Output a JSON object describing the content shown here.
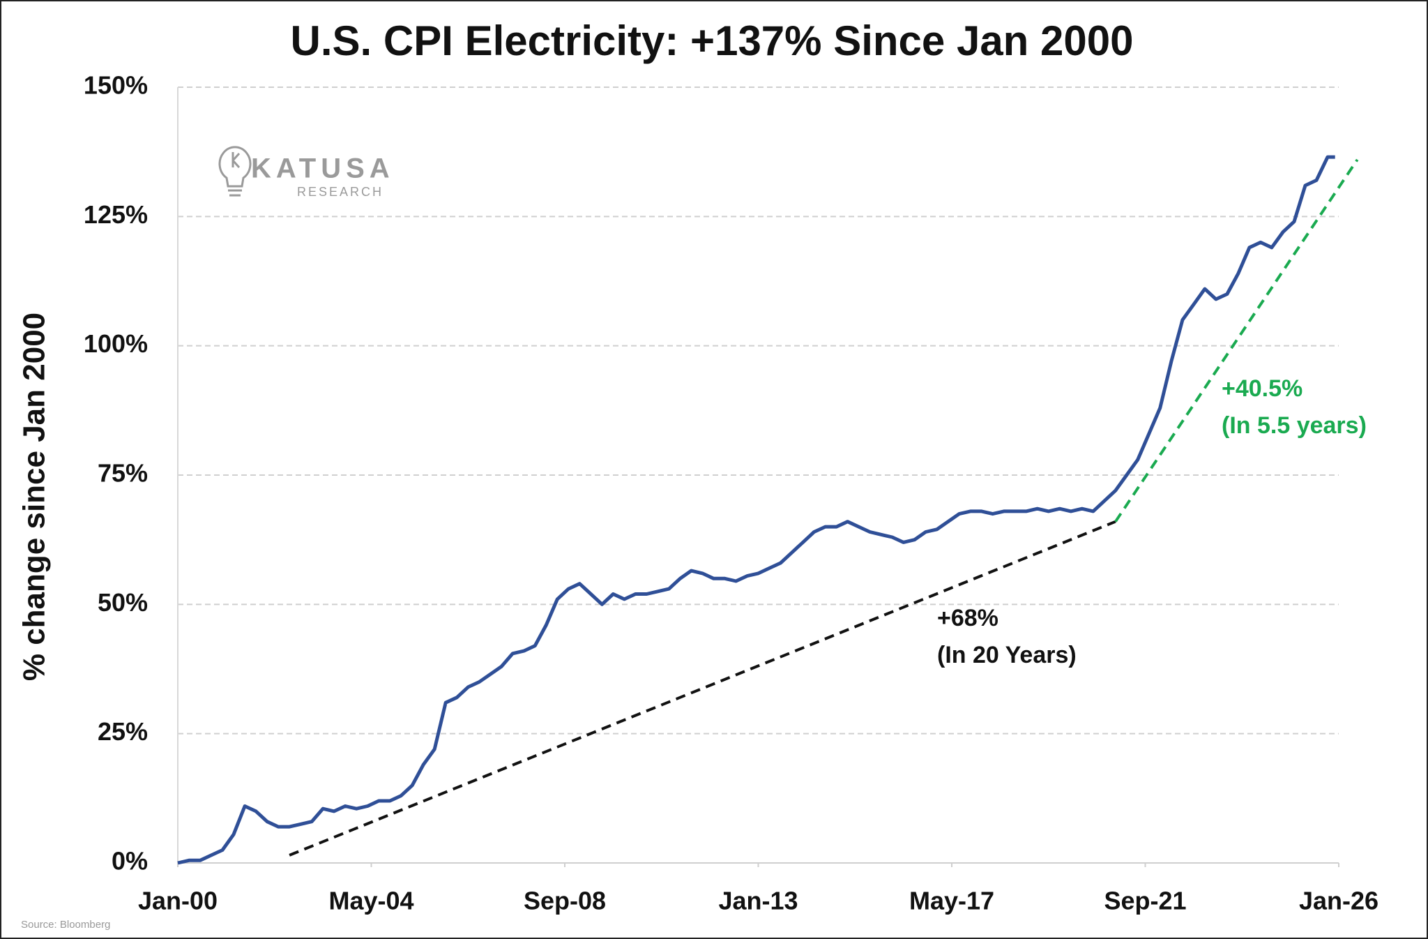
{
  "chart_data": {
    "type": "line",
    "title": "U.S. CPI Electricity: +137% Since Jan 2000",
    "y_label": "% change since Jan 2000",
    "source": "Source: Bloomberg",
    "watermark": {
      "name": "KATUSA",
      "subtitle": "RESEARCH"
    },
    "xlim": [
      0,
      312
    ],
    "xticks": [
      {
        "value": 0,
        "label": "Jan-00"
      },
      {
        "value": 52,
        "label": "May-04"
      },
      {
        "value": 104,
        "label": "Sep-08"
      },
      {
        "value": 156,
        "label": "Jan-13"
      },
      {
        "value": 208,
        "label": "May-17"
      },
      {
        "value": 260,
        "label": "Sep-21"
      },
      {
        "value": 312,
        "label": "Jan-26"
      }
    ],
    "ylim": [
      0,
      150
    ],
    "yticks": [
      {
        "value": 0,
        "label": "0%"
      },
      {
        "value": 25,
        "label": "25%"
      },
      {
        "value": 50,
        "label": "50%"
      },
      {
        "value": 75,
        "label": "75%"
      },
      {
        "value": 100,
        "label": "100%"
      },
      {
        "value": 125,
        "label": "125%"
      },
      {
        "value": 150,
        "label": "150%"
      }
    ],
    "grid": true,
    "series": [
      {
        "color": "#2f4f97",
        "x": [
          0,
          3,
          6,
          9,
          12,
          15,
          18,
          21,
          24,
          27,
          30,
          33,
          36,
          39,
          42,
          45,
          48,
          51,
          54,
          57,
          60,
          63,
          66,
          69,
          72,
          75,
          78,
          81,
          84,
          87,
          90,
          93,
          96,
          99,
          102,
          105,
          108,
          111,
          114,
          117,
          120,
          123,
          126,
          129,
          132,
          135,
          138,
          141,
          144,
          147,
          150,
          153,
          156,
          159,
          162,
          165,
          168,
          171,
          174,
          177,
          180,
          183,
          186,
          189,
          192,
          195,
          198,
          201,
          204,
          207,
          210,
          213,
          216,
          219,
          222,
          225,
          228,
          231,
          234,
          237,
          240,
          243,
          246,
          249,
          252,
          255,
          258,
          261,
          264,
          267,
          270,
          273,
          276,
          279,
          282,
          285,
          288,
          291,
          294,
          297,
          300,
          303,
          306,
          309,
          311
        ],
        "values": [
          0,
          0.5,
          0.5,
          1.5,
          2.5,
          5.5,
          11,
          10,
          8,
          7,
          7,
          7.5,
          8,
          10.5,
          10,
          11,
          10.5,
          11,
          12,
          12,
          13,
          15,
          19,
          22,
          31,
          32,
          34,
          35,
          36.5,
          38,
          40.5,
          41,
          42,
          46,
          51,
          53,
          54,
          52,
          50,
          52,
          51,
          52,
          52,
          52.5,
          53,
          55,
          56.5,
          56,
          55,
          55,
          54.5,
          55.5,
          56,
          57,
          58,
          60,
          62,
          64,
          65,
          65,
          66,
          65,
          64,
          63.5,
          63,
          62,
          62.5,
          64,
          64.5,
          66,
          67.5,
          68,
          68,
          67.5,
          68,
          68,
          68,
          68.5,
          68,
          68.5,
          68,
          68.5,
          68,
          70,
          72,
          75,
          78,
          83,
          88,
          97,
          105,
          108,
          111,
          109,
          110,
          114,
          119,
          120,
          119,
          122,
          124,
          131,
          132,
          136.5,
          136.5
        ]
      }
    ],
    "trend_lines": [
      {
        "color": "#111111",
        "x": [
          30,
          252
        ],
        "values": [
          1.5,
          66
        ]
      },
      {
        "color": "#1aaa50",
        "x": [
          252,
          317
        ],
        "values": [
          66,
          136
        ]
      }
    ],
    "annotations": [
      {
        "color": "#111111",
        "lines": [
          "+68%",
          "(In 20 Years)"
        ]
      },
      {
        "color": "#1aaa50",
        "lines": [
          "+40.5%",
          "(In 5.5 years)"
        ]
      }
    ]
  }
}
